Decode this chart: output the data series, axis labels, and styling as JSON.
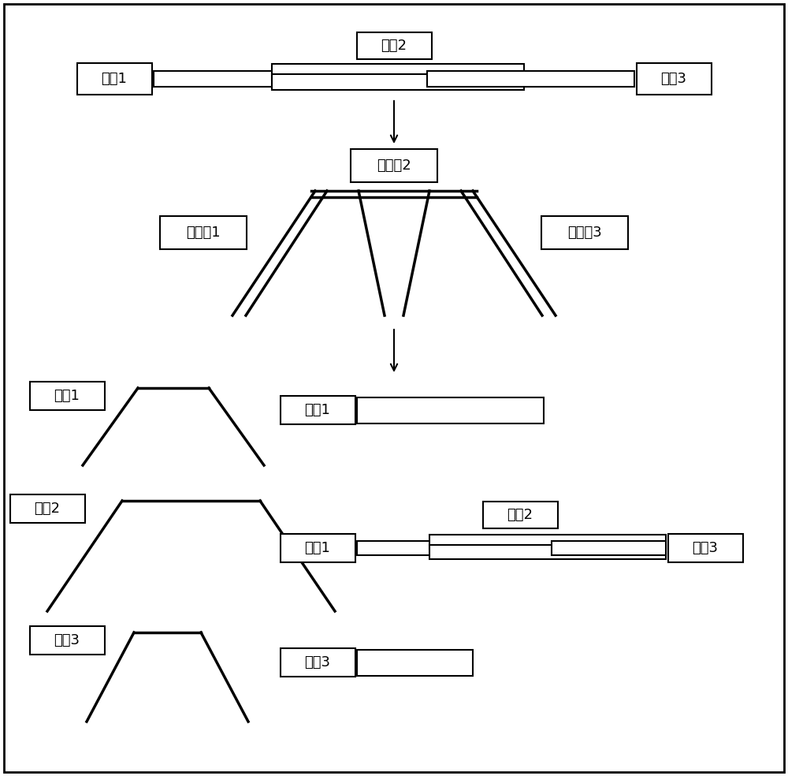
{
  "bg_color": "#ffffff",
  "labels": {
    "xinhao1": "信号1",
    "xinhao2": "信号2",
    "xinhao3": "信号3",
    "lvboqi1": "滤波器1",
    "lvboqi2": "滤波器2",
    "lvboqi3": "滤波器3",
    "tongdao1": "通道1",
    "tongdao2": "通道2",
    "tongdao3": "通道3"
  },
  "font_size": 13,
  "lw_thick": 2.5,
  "lw_thin": 1.5
}
